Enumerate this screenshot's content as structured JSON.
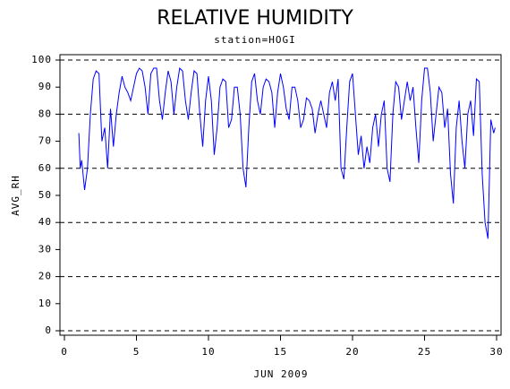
{
  "chart_data": {
    "type": "line",
    "title": "RELATIVE HUMIDITY",
    "subtitle": "station=HOGI",
    "y_label": "AVG_RH",
    "x_label": "JUN 2009",
    "xlim": [
      0,
      30
    ],
    "xticks": [
      0,
      5,
      10,
      15,
      20,
      25,
      30
    ],
    "ylim": [
      0,
      100
    ],
    "yticks": [
      0,
      10,
      20,
      30,
      40,
      50,
      60,
      70,
      80,
      90,
      100
    ],
    "gridlines": [
      0,
      20,
      40,
      60,
      80,
      100
    ],
    "x": [
      1.0,
      1.1,
      1.2,
      1.4,
      1.6,
      1.8,
      2.0,
      2.2,
      2.4,
      2.6,
      2.8,
      3.0,
      3.2,
      3.4,
      3.6,
      3.8,
      4.0,
      4.2,
      4.4,
      4.6,
      4.8,
      5.0,
      5.2,
      5.4,
      5.6,
      5.8,
      6.0,
      6.2,
      6.4,
      6.6,
      6.8,
      7.0,
      7.2,
      7.4,
      7.6,
      7.8,
      8.0,
      8.2,
      8.4,
      8.6,
      8.8,
      9.0,
      9.2,
      9.4,
      9.6,
      9.8,
      10.0,
      10.2,
      10.4,
      10.6,
      10.8,
      11.0,
      11.2,
      11.4,
      11.6,
      11.8,
      12.0,
      12.2,
      12.4,
      12.6,
      12.8,
      13.0,
      13.2,
      13.4,
      13.6,
      13.8,
      14.0,
      14.2,
      14.4,
      14.6,
      14.8,
      15.0,
      15.2,
      15.4,
      15.6,
      15.8,
      16.0,
      16.2,
      16.4,
      16.6,
      16.8,
      17.0,
      17.2,
      17.4,
      17.6,
      17.8,
      18.0,
      18.2,
      18.4,
      18.6,
      18.8,
      19.0,
      19.2,
      19.4,
      19.6,
      19.8,
      20.0,
      20.2,
      20.4,
      20.6,
      20.8,
      21.0,
      21.2,
      21.4,
      21.6,
      21.8,
      22.0,
      22.2,
      22.4,
      22.6,
      22.8,
      23.0,
      23.2,
      23.4,
      23.6,
      23.8,
      24.0,
      24.2,
      24.4,
      24.6,
      24.8,
      25.0,
      25.2,
      25.4,
      25.6,
      25.8,
      26.0,
      26.2,
      26.4,
      26.6,
      26.8,
      27.0,
      27.2,
      27.4,
      27.6,
      27.8,
      28.0,
      28.2,
      28.4,
      28.6,
      28.8,
      29.0,
      29.2,
      29.4,
      29.6,
      29.8,
      29.9
    ],
    "series": [
      {
        "color": "#0000ff",
        "values": [
          73,
          60,
          63,
          52,
          60,
          80,
          93,
          96,
          95,
          70,
          75,
          60,
          82,
          68,
          80,
          88,
          94,
          90,
          88,
          85,
          90,
          95,
          97,
          96,
          90,
          80,
          95,
          97,
          97,
          85,
          78,
          88,
          96,
          92,
          80,
          90,
          97,
          96,
          85,
          78,
          88,
          96,
          95,
          80,
          68,
          85,
          94,
          85,
          65,
          75,
          90,
          93,
          92,
          75,
          78,
          90,
          90,
          80,
          60,
          53,
          75,
          92,
          95,
          85,
          80,
          90,
          93,
          92,
          88,
          75,
          88,
          95,
          90,
          82,
          78,
          90,
          90,
          85,
          75,
          78,
          86,
          85,
          82,
          73,
          80,
          85,
          80,
          75,
          88,
          92,
          85,
          93,
          60,
          56,
          75,
          92,
          95,
          80,
          65,
          72,
          60,
          68,
          62,
          75,
          80,
          68,
          80,
          85,
          60,
          55,
          80,
          92,
          90,
          78,
          85,
          92,
          85,
          90,
          75,
          62,
          85,
          97,
          97,
          88,
          70,
          80,
          90,
          88,
          75,
          82,
          58,
          47,
          75,
          85,
          70,
          60,
          80,
          85,
          72,
          93,
          92,
          58,
          40,
          34,
          78,
          73,
          75
        ]
      }
    ]
  }
}
